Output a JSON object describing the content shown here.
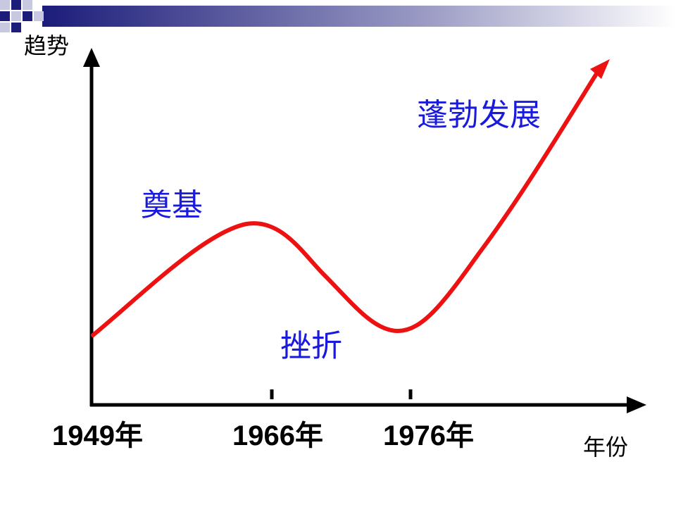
{
  "axes": {
    "y_label": "趋势",
    "x_label": "年份"
  },
  "years": [
    "1949年",
    "1966年",
    "1976年"
  ],
  "stages": [
    "奠基",
    "挫折",
    "蓬勃发展"
  ]
}
